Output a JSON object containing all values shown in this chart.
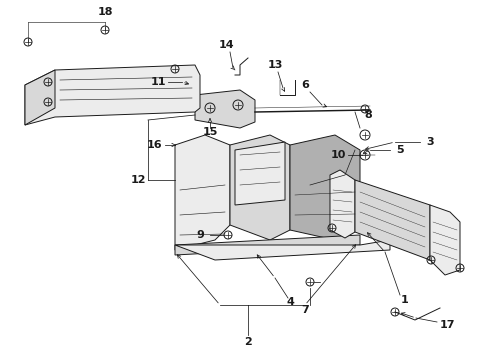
{
  "background_color": "#ffffff",
  "line_color": "#1a1a1a",
  "gray_fill": "#d8d8d8",
  "light_gray": "#ececec",
  "mid_gray": "#b0b0b0",
  "fig_width": 4.89,
  "fig_height": 3.6,
  "dpi": 100,
  "label_fontsize": 8,
  "lw": 0.7,
  "leader_lw": 0.55
}
